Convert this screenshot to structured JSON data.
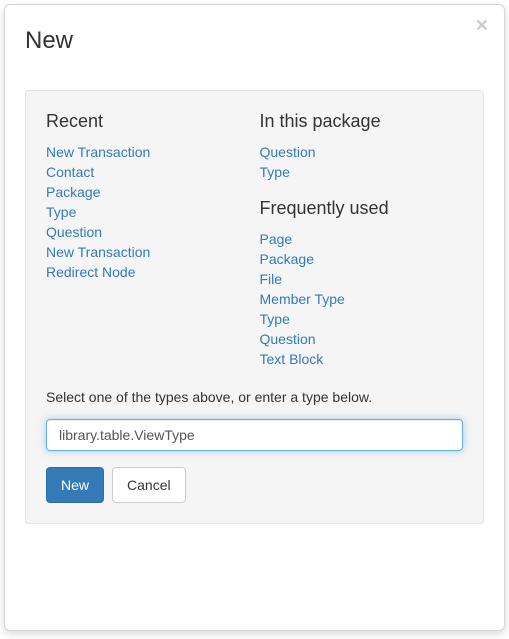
{
  "colors": {
    "link": "#337ab7",
    "panel_bg": "#f5f5f5",
    "panel_border": "#e3e3e3",
    "input_focus_border": "#66afe9",
    "btn_primary_bg": "#337ab7",
    "btn_primary_border": "#2e6da4",
    "btn_default_border": "#cccccc",
    "text": "#333333"
  },
  "modal": {
    "title": "New",
    "close_symbol": "×"
  },
  "sections": {
    "recent": {
      "title": "Recent",
      "items": [
        "New Transaction",
        "Contact",
        "Package",
        "Type",
        "Question",
        "New Transaction",
        "Redirect Node"
      ]
    },
    "in_package": {
      "title": "In this package",
      "items": [
        "Question",
        "Type"
      ]
    },
    "frequent": {
      "title": "Frequently used",
      "items": [
        "Page",
        "Package",
        "File",
        "Member Type",
        "Type",
        "Question",
        "Text Block"
      ]
    }
  },
  "instruction": "Select one of the types above, or enter a type below.",
  "input": {
    "value": "library.table.ViewType"
  },
  "buttons": {
    "new": "New",
    "cancel": "Cancel"
  }
}
